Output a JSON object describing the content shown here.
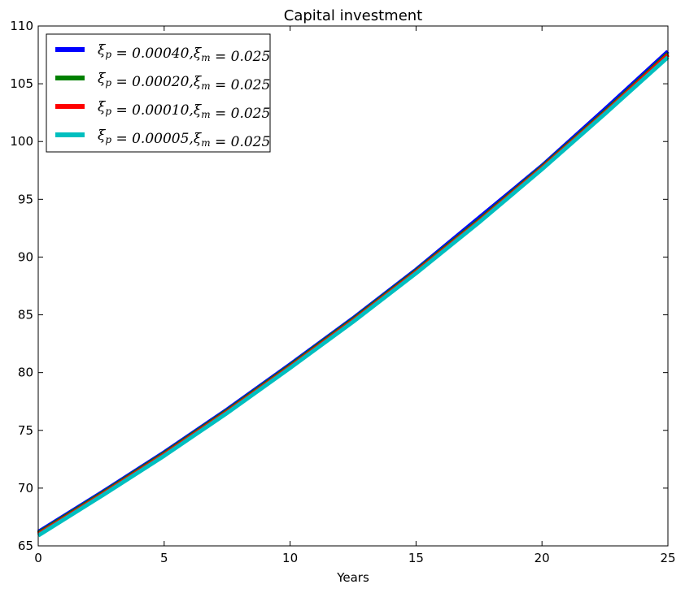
{
  "chart_data": {
    "type": "line",
    "title": "Capital investment",
    "xlabel": "Years",
    "ylabel": "",
    "xlim": [
      0,
      25
    ],
    "ylim": [
      65,
      110
    ],
    "xticks": [
      0,
      5,
      10,
      15,
      20,
      25
    ],
    "yticks": [
      65,
      70,
      75,
      80,
      85,
      90,
      95,
      100,
      105,
      110
    ],
    "x": [
      0,
      2.5,
      5,
      7.5,
      10,
      12.5,
      15,
      17.5,
      20,
      22.5,
      25
    ],
    "series": [
      {
        "name": "ξ_p = 0.00040, ξ_m = 0.025",
        "color": "#0000ff",
        "values": [
          66.2,
          69.6,
          73.1,
          76.8,
          80.7,
          84.7,
          88.9,
          93.4,
          97.9,
          102.8,
          107.8
        ]
      },
      {
        "name": "ξ_p = 0.00020, ξ_m = 0.025",
        "color": "#008000",
        "values": [
          66.1,
          69.5,
          73.0,
          76.7,
          80.6,
          84.6,
          88.8,
          93.2,
          97.8,
          102.6,
          107.6
        ]
      },
      {
        "name": "ξ_p = 0.00010, ξ_m = 0.025",
        "color": "#ff0000",
        "values": [
          66.0,
          69.4,
          72.9,
          76.6,
          80.5,
          84.5,
          88.7,
          93.1,
          97.7,
          102.5,
          107.5
        ]
      },
      {
        "name": "ξ_p = 0.00005, ξ_m = 0.025",
        "color": "#00bfbf",
        "values": [
          65.9,
          69.3,
          72.8,
          76.5,
          80.4,
          84.4,
          88.6,
          93.0,
          97.6,
          102.4,
          107.3
        ]
      }
    ],
    "legend": {
      "placement": "top-left",
      "entries": [
        {
          "xi_p_symbol": "ξ",
          "xi_p_sub": "p",
          "xi_p_value": "= 0.00040,",
          "xi_m_symbol": "ξ",
          "xi_m_sub": "m",
          "xi_m_value": "= 0.025"
        },
        {
          "xi_p_symbol": "ξ",
          "xi_p_sub": "p",
          "xi_p_value": "= 0.00020,",
          "xi_m_symbol": "ξ",
          "xi_m_sub": "m",
          "xi_m_value": "= 0.025"
        },
        {
          "xi_p_symbol": "ξ",
          "xi_p_sub": "p",
          "xi_p_value": "= 0.00010,",
          "xi_m_symbol": "ξ",
          "xi_m_sub": "m",
          "xi_m_value": "= 0.025"
        },
        {
          "xi_p_symbol": "ξ",
          "xi_p_sub": "p",
          "xi_p_value": "= 0.00005,",
          "xi_m_symbol": "ξ",
          "xi_m_sub": "m",
          "xi_m_value": "= 0.025"
        }
      ]
    },
    "grid": false
  }
}
